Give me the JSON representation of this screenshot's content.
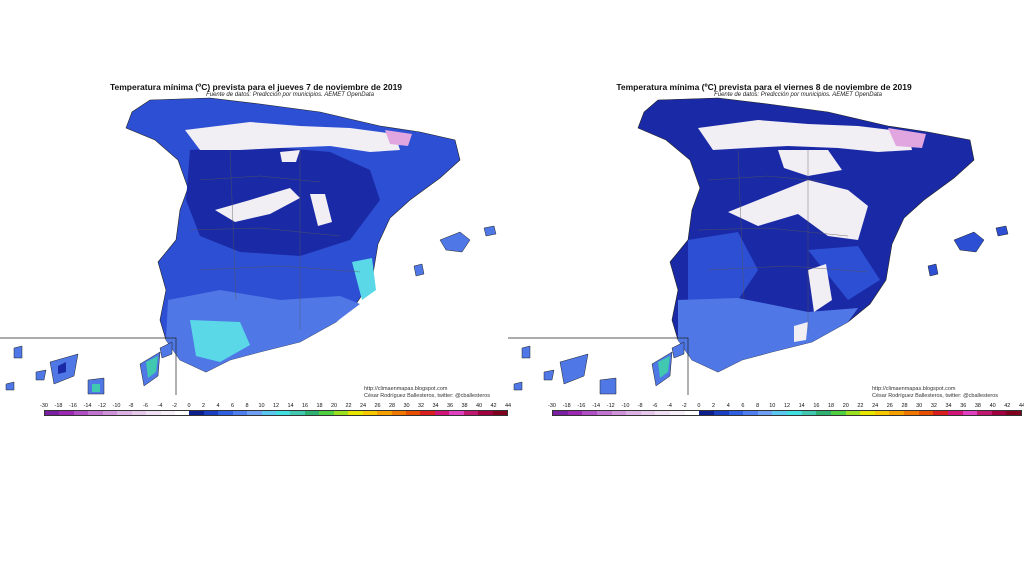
{
  "colors": {
    "deep_blue": "#1a2aa6",
    "mid_blue": "#2d4fd4",
    "light_blue": "#4f78e6",
    "cyan": "#5ad8e8",
    "frost_white": "#f1eef4",
    "frost_pink": "#e1a6e0",
    "border": "#222222"
  },
  "maps": [
    {
      "title": "Temperatura mínima (ºC) prevista para el jueves 7 de noviembre de 2019",
      "subtitle": "Fuente de datos: Predicción por municipios. AEMET OpenData",
      "credit_url": "http://climaenmapas.blogspot.com",
      "credit_author": "César Rodríguez Ballesteros, twitter: @cballesteros",
      "frost_extent": "small"
    },
    {
      "title": "Temperatura mínima (ºC) prevista para el viernes 8 de noviembre de 2019",
      "subtitle": "Fuente de datos: Predicción por municipios. AEMET OpenData",
      "credit_url": "http://climaenmapas.blogspot.com",
      "credit_author": "César Rodríguez Ballesteros, twitter: @cballesteros",
      "frost_extent": "large"
    }
  ],
  "legend": {
    "labels": [
      "-30",
      "-18",
      "-16",
      "-14",
      "-12",
      "-10",
      "-8",
      "-6",
      "-4",
      "-2",
      "0",
      "2",
      "4",
      "6",
      "8",
      "10",
      "12",
      "14",
      "16",
      "18",
      "20",
      "22",
      "24",
      "26",
      "28",
      "30",
      "32",
      "34",
      "36",
      "38",
      "40",
      "42",
      "44"
    ],
    "colors": [
      "#7b1fa2",
      "#9c27b0",
      "#b04fc4",
      "#c074d0",
      "#cf93da",
      "#dcb1e3",
      "#e6c8eb",
      "#efdff2",
      "#f7eff8",
      "#ffffff",
      "#0d1f8c",
      "#1a3fc0",
      "#2e5fe0",
      "#4f7fef",
      "#6e9ff5",
      "#5ac8ee",
      "#40e0e0",
      "#40c8b0",
      "#2eb070",
      "#4fd040",
      "#9be020",
      "#e6e600",
      "#f5c800",
      "#f5a000",
      "#f07800",
      "#e84e00",
      "#d81e1e",
      "#d01478",
      "#e040c0",
      "#c01870",
      "#a00040",
      "#800020"
    ]
  }
}
